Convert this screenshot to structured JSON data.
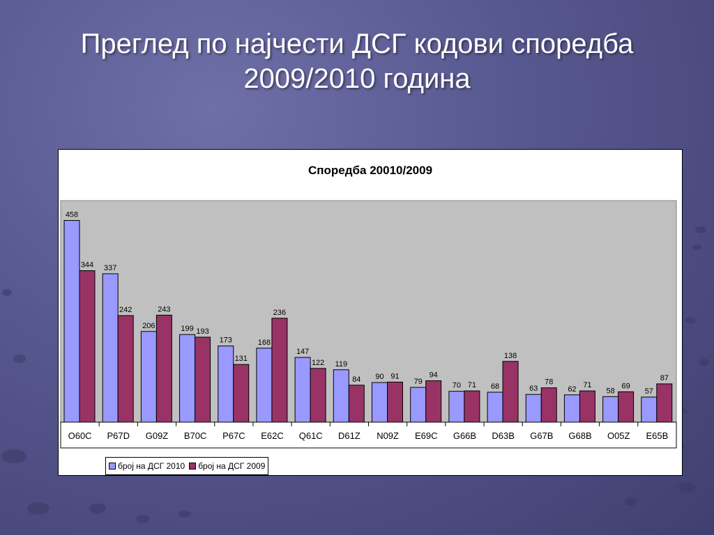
{
  "slide": {
    "title_line1": "Преглед по најчести ДСГ кодови споредба",
    "title_line2": "2009/2010 година"
  },
  "colors": {
    "series_2010": "#9999ff",
    "series_2009": "#993366",
    "plot_background": "#c0c0c0"
  },
  "chart_data": {
    "type": "bar",
    "title": "Споредба 20010/2009",
    "categories": [
      "O60C",
      "P67D",
      "G09Z",
      "B70C",
      "P67C",
      "E62C",
      "Q61C",
      "D61Z",
      "N09Z",
      "E69C",
      "G66B",
      "D63B",
      "G67B",
      "G68B",
      "O05Z",
      "E65B"
    ],
    "series": [
      {
        "name": "број на ДСГ 2010",
        "values": [
          458,
          337,
          206,
          199,
          173,
          168,
          147,
          119,
          90,
          79,
          70,
          68,
          63,
          62,
          58,
          57
        ]
      },
      {
        "name": "број на ДСГ 2009",
        "values": [
          344,
          242,
          243,
          193,
          131,
          236,
          122,
          84,
          91,
          94,
          71,
          138,
          78,
          71,
          69,
          87
        ]
      }
    ],
    "ylim": [
      0,
      500
    ],
    "grid": false,
    "legend_position": "bottom-left",
    "data_labels": true
  }
}
